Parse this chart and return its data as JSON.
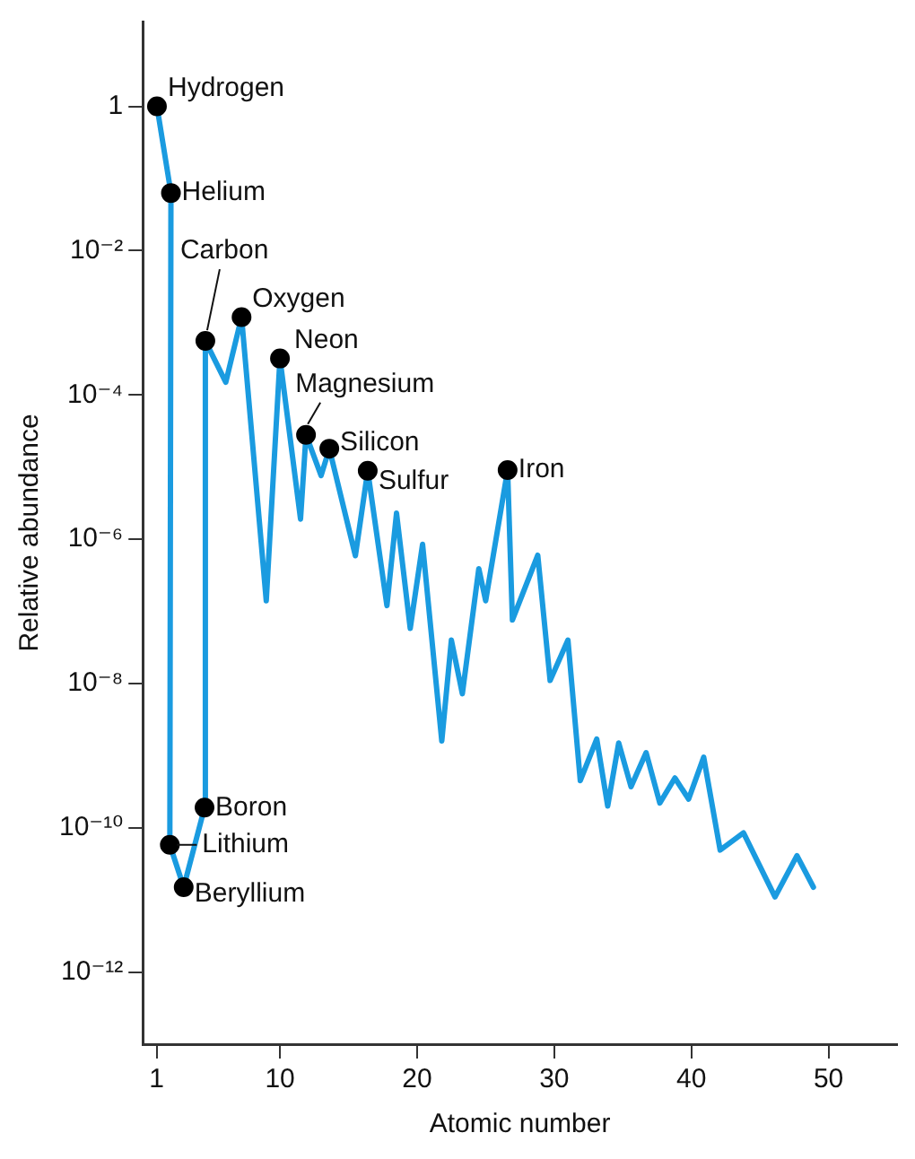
{
  "chart_data": {
    "type": "line",
    "xlabel": "Atomic number",
    "ylabel": "Relative abundance",
    "xlim": [
      0,
      55
    ],
    "xticks": [
      1,
      10,
      20,
      30,
      40,
      50
    ],
    "ylim": [
      1e-13,
      15
    ],
    "yticks": [
      1,
      {
        "value": 0.01,
        "label": "10⁻²"
      },
      {
        "value": 0.0001,
        "label": "10⁻⁴"
      },
      {
        "value": 1e-06,
        "label": "10⁻⁶"
      },
      {
        "value": 1e-08,
        "label": "10⁻⁸"
      },
      {
        "value": 1e-10,
        "label": "10⁻¹⁰"
      },
      {
        "value": 1e-12,
        "label": "10⁻¹²"
      }
    ],
    "log": "y",
    "legend": false,
    "series": [
      {
        "color": "#1a9be0",
        "marker": "none",
        "x": [
          1.03,
          2.05,
          1.97,
          2.98,
          4.5,
          4.56,
          6.05,
          7.2,
          9.0,
          10.0,
          11.5,
          11.9,
          13.0,
          13.6,
          15.5,
          16.4,
          17.8,
          18.5,
          19.5,
          20.4,
          21.8,
          22.5,
          23.3,
          24.5,
          25.0,
          26.6,
          26.95,
          28.8,
          29.7,
          31.0,
          31.9,
          33.1,
          33.9,
          34.7,
          35.6,
          36.7,
          37.7,
          38.8,
          39.8,
          40.9,
          42.1,
          43.8,
          46.1,
          47.7,
          48.9
        ],
        "values": [
          1,
          0.063,
          5.8e-11,
          1.5e-11,
          1.9e-10,
          0.00056,
          0.00015,
          0.0012,
          1.4e-07,
          0.00032,
          1.9e-06,
          2.8e-05,
          7.6e-06,
          1.8e-05,
          5.9e-07,
          8.9e-06,
          1.2e-07,
          2.3e-06,
          5.8e-08,
          8.5e-07,
          1.6e-09,
          4e-08,
          7.2e-09,
          3.9e-07,
          1.4e-07,
          9.1e-06,
          7.6e-08,
          6e-07,
          1.1e-08,
          4e-08,
          4.5e-10,
          1.7e-09,
          2e-10,
          1.5e-09,
          3.7e-10,
          1.1e-09,
          2.2e-10,
          4.9e-10,
          2.5e-10,
          9.5e-10,
          4.9e-11,
          8.5e-11,
          1.1e-11,
          4.1e-11,
          1.5e-11
        ]
      },
      {
        "type": "scatter",
        "color": "#000000",
        "marker": "circle",
        "x": [
          1.03,
          2.05,
          1.97,
          2.98,
          4.5,
          4.56,
          7.2,
          10.0,
          11.9,
          13.6,
          16.4,
          26.6
        ],
        "values": [
          1,
          0.063,
          5.8e-11,
          1.5e-11,
          1.9e-10,
          0.00056,
          0.0012,
          0.00032,
          2.8e-05,
          1.8e-05,
          8.9e-06,
          9.1e-06
        ]
      }
    ],
    "annotations": [
      {
        "text": "Hydrogen",
        "x": 1.03,
        "y": 1
      },
      {
        "text": "Helium",
        "x": 2.05,
        "y": 0.063
      },
      {
        "text": "Lithium",
        "x": 1.97,
        "y": 5.8e-11
      },
      {
        "text": "Beryllium",
        "x": 2.98,
        "y": 1.5e-11
      },
      {
        "text": "Boron",
        "x": 4.5,
        "y": 1.9e-10
      },
      {
        "text": "Carbon",
        "x": 4.56,
        "y": 0.00056
      },
      {
        "text": "Oxygen",
        "x": 7.2,
        "y": 0.0012
      },
      {
        "text": "Neon",
        "x": 10.0,
        "y": 0.00032
      },
      {
        "text": "Magnesium",
        "x": 11.9,
        "y": 2.8e-05
      },
      {
        "text": "Silicon",
        "x": 13.6,
        "y": 1.8e-05
      },
      {
        "text": "Sulfur",
        "x": 16.4,
        "y": 8.9e-06
      },
      {
        "text": "Iron",
        "x": 26.6,
        "y": 9.1e-06
      }
    ]
  }
}
